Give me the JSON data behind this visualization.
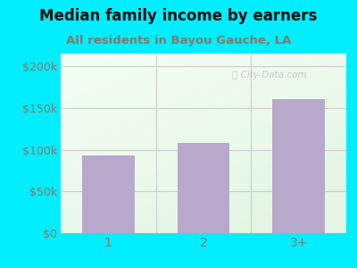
{
  "title": "Median family income by earners",
  "subtitle": "All residents in Bayou Gauche, LA",
  "categories": [
    "1",
    "2",
    "3+"
  ],
  "values": [
    93000,
    108000,
    160000
  ],
  "bar_color": "#b8a8cc",
  "title_fontsize": 12,
  "subtitle_fontsize": 9.5,
  "ylabel_ticks": [
    0,
    50000,
    100000,
    150000,
    200000
  ],
  "ylabel_labels": [
    "$0",
    "$50k",
    "$100k",
    "$150k",
    "$200k"
  ],
  "ylim": [
    0,
    215000
  ],
  "bg_outer": "#00eeff",
  "title_color": "#111111",
  "subtitle_color": "#887766",
  "tick_color": "#887766",
  "watermark": "City-Data.com",
  "grid_color": "#cccccc"
}
